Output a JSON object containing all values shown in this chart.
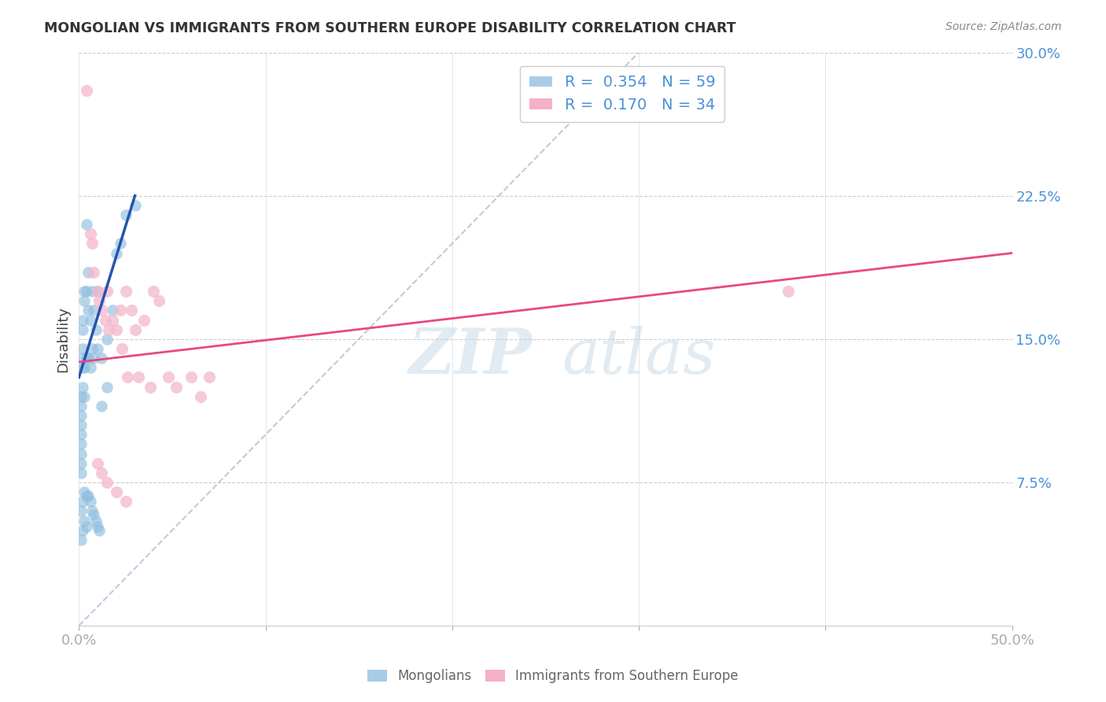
{
  "title": "MONGOLIAN VS IMMIGRANTS FROM SOUTHERN EUROPE DISABILITY CORRELATION CHART",
  "source": "Source: ZipAtlas.com",
  "ylabel": "Disability",
  "xlim": [
    0.0,
    0.5
  ],
  "ylim": [
    0.0,
    0.3
  ],
  "mongolians_color": "#90bfdf",
  "immigrants_color": "#f4b8cc",
  "trend1_color": "#2255b0",
  "trend2_color": "#e84880",
  "diagonal_color": "#b0bfd0",
  "mongolians_x": [
    0.001,
    0.001,
    0.001,
    0.001,
    0.001,
    0.001,
    0.001,
    0.001,
    0.001,
    0.002,
    0.002,
    0.002,
    0.002,
    0.002,
    0.002,
    0.003,
    0.003,
    0.003,
    0.003,
    0.004,
    0.004,
    0.004,
    0.005,
    0.005,
    0.005,
    0.006,
    0.006,
    0.007,
    0.007,
    0.008,
    0.008,
    0.009,
    0.01,
    0.01,
    0.012,
    0.012,
    0.015,
    0.015,
    0.018,
    0.02,
    0.022,
    0.025,
    0.03,
    0.001,
    0.001,
    0.002,
    0.002,
    0.003,
    0.003,
    0.004,
    0.004,
    0.005,
    0.006,
    0.007,
    0.008,
    0.009,
    0.01,
    0.011
  ],
  "mongolians_y": [
    0.12,
    0.115,
    0.11,
    0.105,
    0.1,
    0.095,
    0.09,
    0.085,
    0.08,
    0.16,
    0.155,
    0.145,
    0.14,
    0.135,
    0.125,
    0.175,
    0.17,
    0.135,
    0.12,
    0.21,
    0.175,
    0.14,
    0.185,
    0.165,
    0.14,
    0.16,
    0.135,
    0.175,
    0.145,
    0.165,
    0.14,
    0.155,
    0.175,
    0.145,
    0.14,
    0.115,
    0.15,
    0.125,
    0.165,
    0.195,
    0.2,
    0.215,
    0.22,
    0.06,
    0.045,
    0.065,
    0.05,
    0.07,
    0.055,
    0.068,
    0.052,
    0.068,
    0.065,
    0.06,
    0.058,
    0.055,
    0.052,
    0.05
  ],
  "immigrants_x": [
    0.004,
    0.006,
    0.007,
    0.008,
    0.01,
    0.011,
    0.012,
    0.014,
    0.015,
    0.016,
    0.018,
    0.02,
    0.022,
    0.023,
    0.025,
    0.026,
    0.028,
    0.03,
    0.032,
    0.035,
    0.038,
    0.04,
    0.043,
    0.048,
    0.052,
    0.06,
    0.065,
    0.07,
    0.38,
    0.01,
    0.012,
    0.015,
    0.02,
    0.025
  ],
  "immigrants_y": [
    0.28,
    0.205,
    0.2,
    0.185,
    0.175,
    0.17,
    0.165,
    0.16,
    0.175,
    0.155,
    0.16,
    0.155,
    0.165,
    0.145,
    0.175,
    0.13,
    0.165,
    0.155,
    0.13,
    0.16,
    0.125,
    0.175,
    0.17,
    0.13,
    0.125,
    0.13,
    0.12,
    0.13,
    0.175,
    0.085,
    0.08,
    0.075,
    0.07,
    0.065
  ],
  "trend1_x0": 0.0,
  "trend1_y0": 0.13,
  "trend1_x1": 0.03,
  "trend1_y1": 0.225,
  "trend2_x0": 0.0,
  "trend2_y0": 0.138,
  "trend2_x1": 0.5,
  "trend2_y1": 0.195
}
